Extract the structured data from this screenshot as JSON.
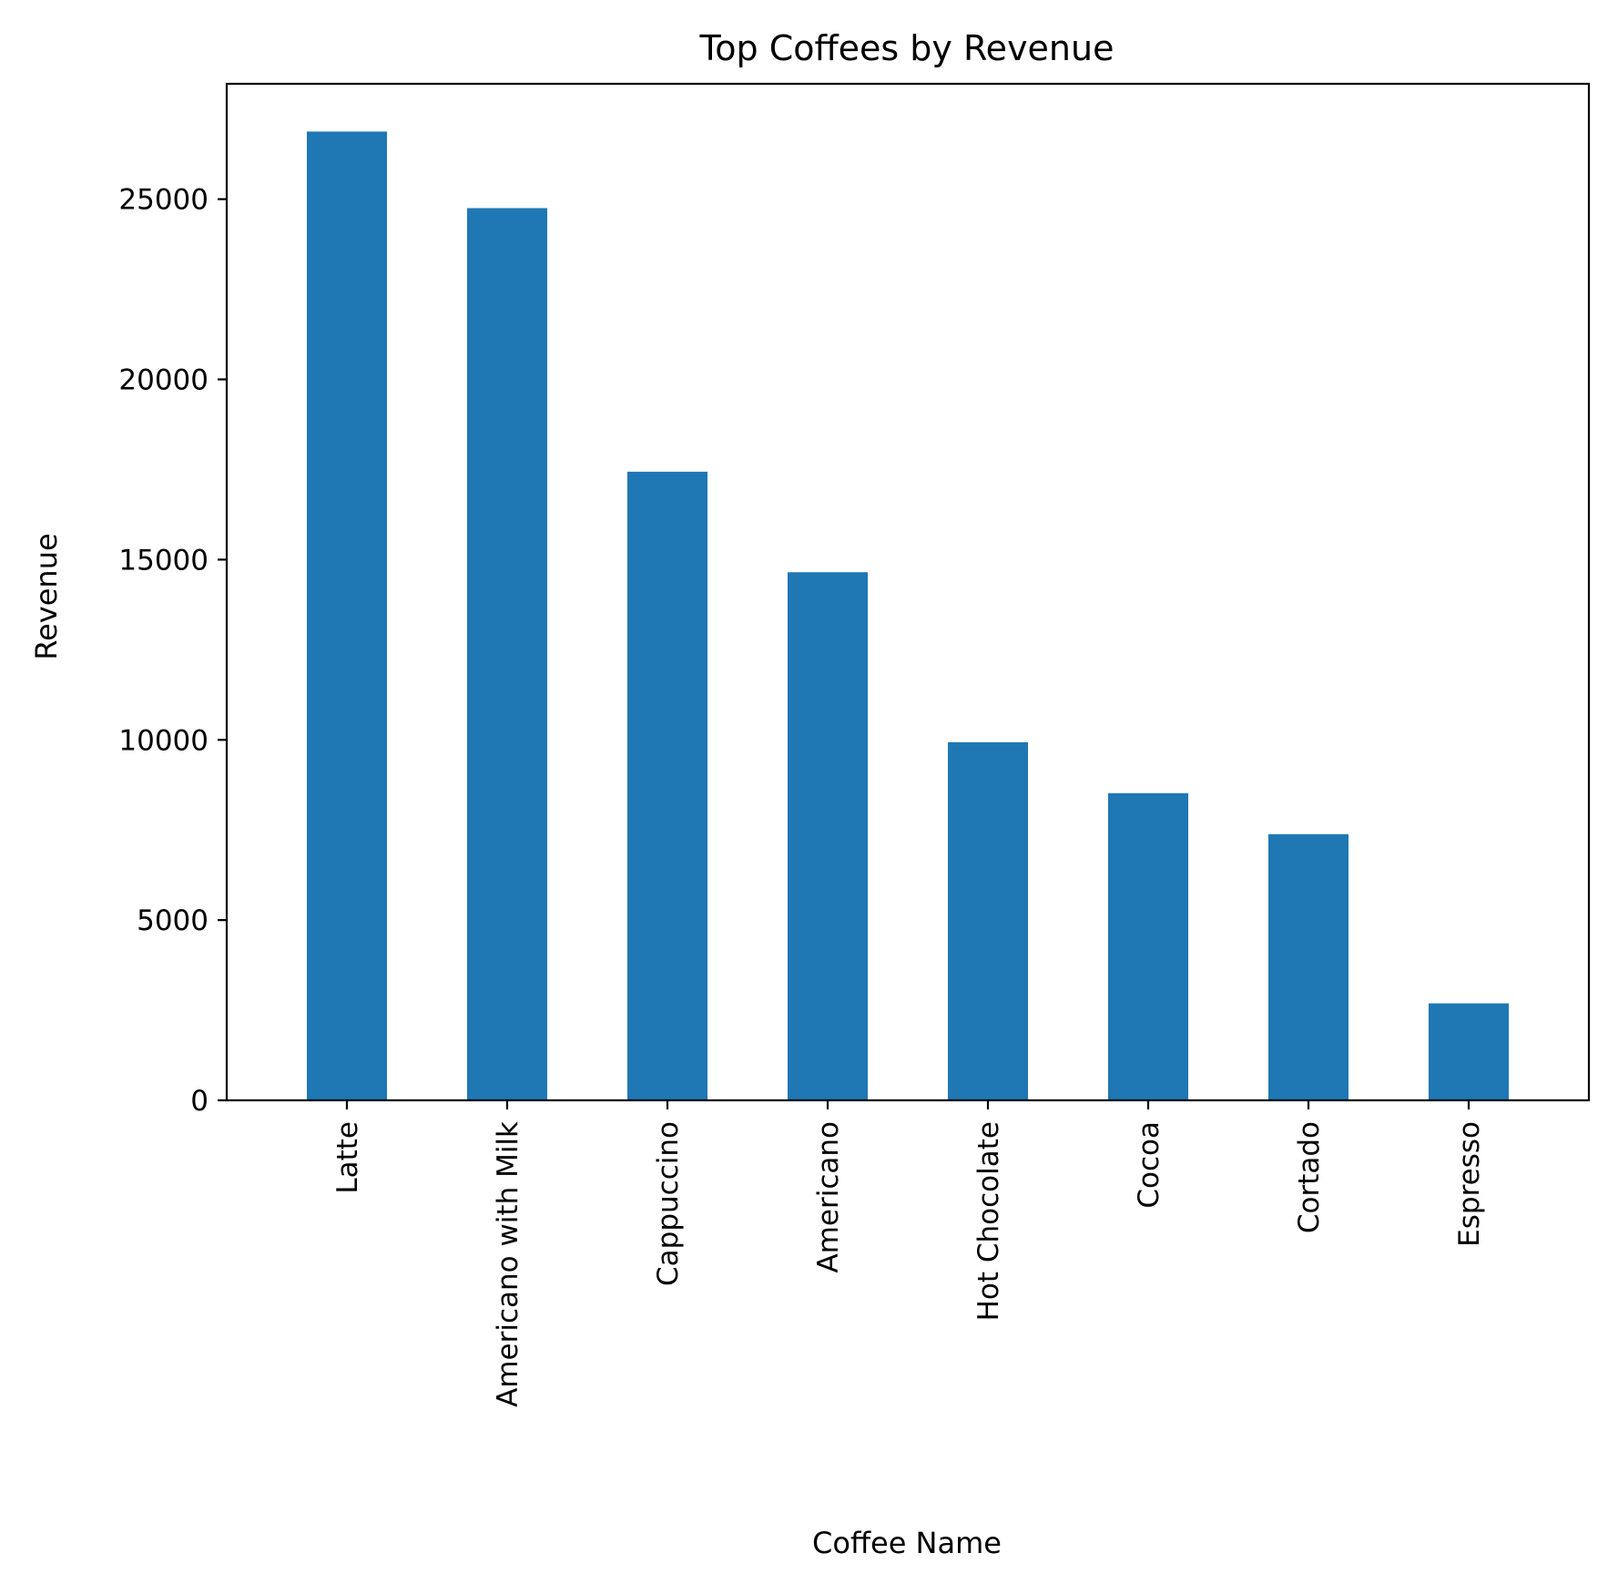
{
  "chart_data": {
    "type": "bar",
    "title": "Top Coffees by Revenue",
    "xlabel": "Coffee Name",
    "ylabel": "Revenue",
    "categories": [
      "Latte",
      "Americano with Milk",
      "Cappuccino",
      "Americano",
      "Hot Chocolate",
      "Cocoa",
      "Cortado",
      "Espresso"
    ],
    "values": [
      26875,
      24751,
      17439,
      14650,
      9934,
      8521,
      7384,
      2690
    ],
    "ylim": [
      0,
      28200
    ],
    "yticks": [
      0,
      5000,
      10000,
      15000,
      20000,
      25000
    ],
    "ytick_labels": [
      "0",
      "5000",
      "10000",
      "15000",
      "20000",
      "25000"
    ],
    "bar_color": "#1f77b4",
    "grid": false,
    "legend": "none"
  }
}
